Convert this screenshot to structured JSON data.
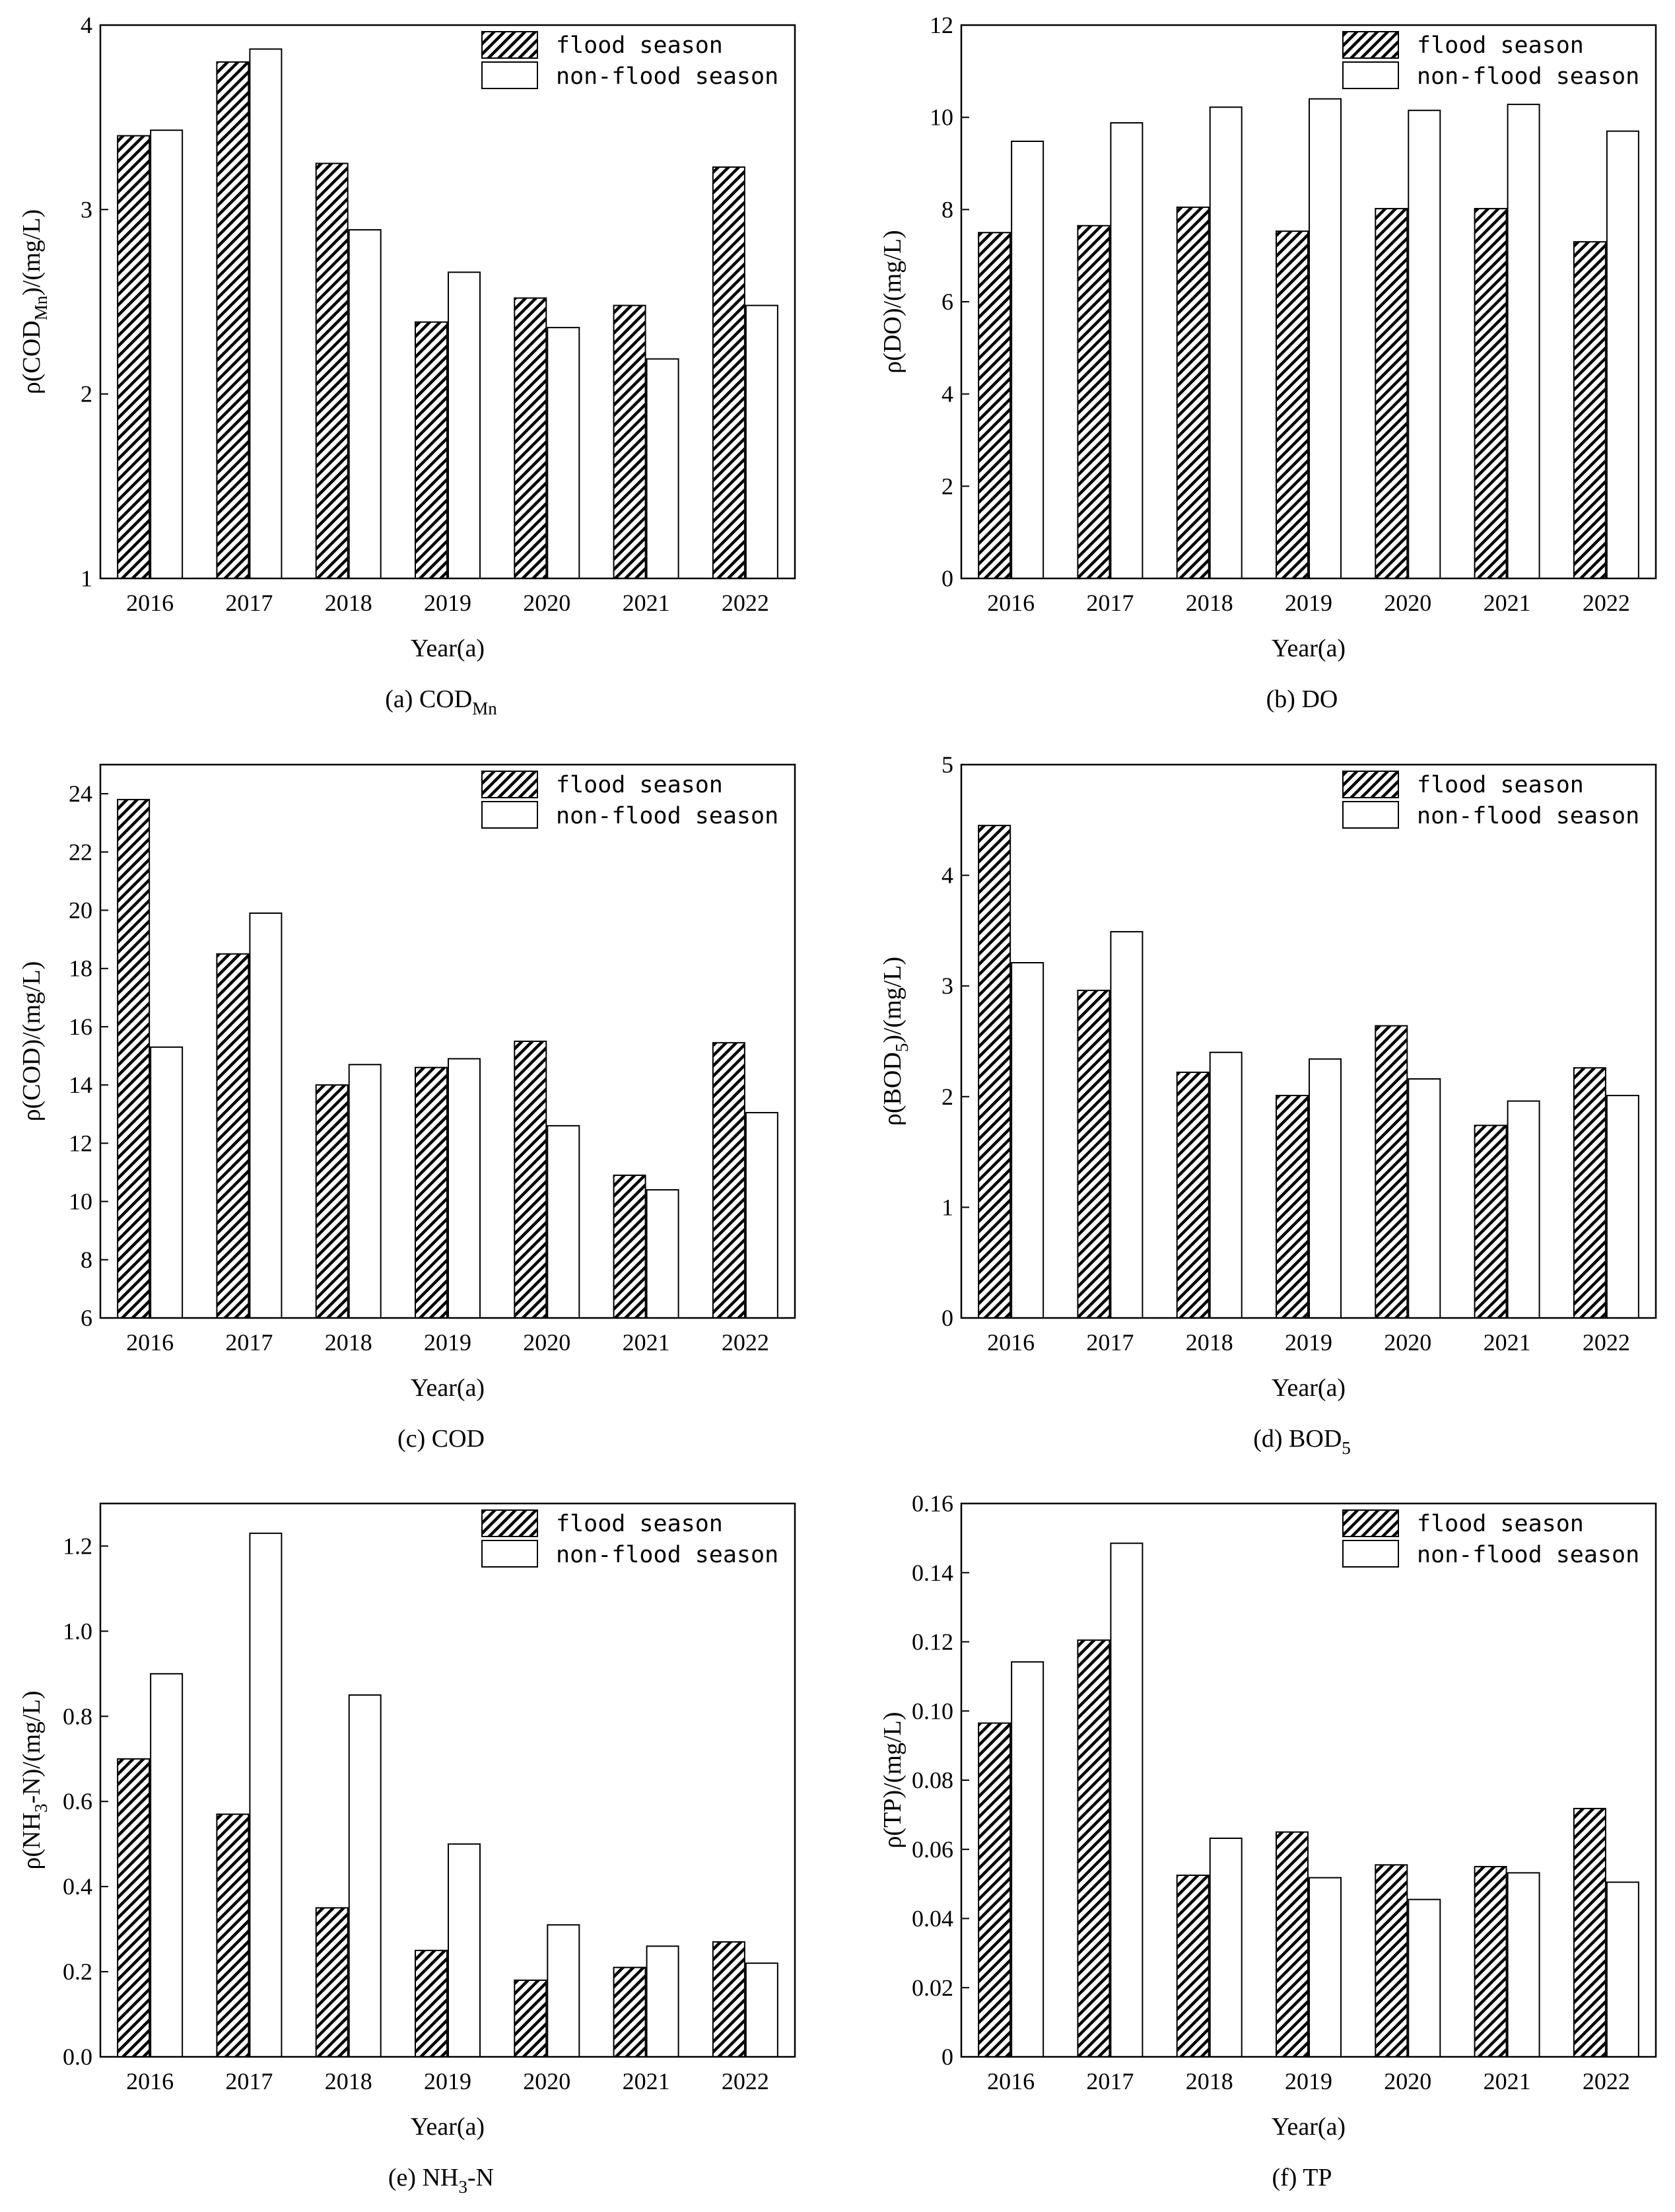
{
  "legend": {
    "flood_label": "flood season",
    "nonflood_label": "non-flood season"
  },
  "chart_data": [
    {
      "type": "bar",
      "caption": "(a) COD",
      "caption_sub": "Mn",
      "caption_after": "",
      "ylabel_pre": "ρ(COD",
      "ylabel_sub": "Mn",
      "ylabel_post": ")/(mg/L)",
      "xlabel": "Year(a)",
      "categories": [
        "2016",
        "2017",
        "2018",
        "2019",
        "2020",
        "2021",
        "2022"
      ],
      "ylim": [
        1,
        4
      ],
      "yticks": [
        "1",
        "2",
        "3",
        "4"
      ],
      "series": [
        {
          "name": "flood season",
          "values": [
            3.4,
            3.8,
            3.25,
            2.39,
            2.52,
            2.48,
            3.23
          ]
        },
        {
          "name": "non-flood season",
          "values": [
            3.43,
            3.87,
            2.89,
            2.66,
            2.36,
            2.19,
            2.48
          ]
        }
      ],
      "legend_position": "top-right",
      "grid": false
    },
    {
      "type": "bar",
      "caption": "(b) DO",
      "caption_sub": "",
      "caption_after": "",
      "ylabel_pre": "ρ(DO)/(mg/L)",
      "ylabel_sub": "",
      "ylabel_post": "",
      "xlabel": "Year(a)",
      "categories": [
        "2016",
        "2017",
        "2018",
        "2019",
        "2020",
        "2021",
        "2022"
      ],
      "ylim": [
        0,
        12
      ],
      "yticks": [
        "0",
        "2",
        "4",
        "6",
        "8",
        "10",
        "12"
      ],
      "series": [
        {
          "name": "flood season",
          "values": [
            7.5,
            7.65,
            8.05,
            7.53,
            8.02,
            8.02,
            7.3
          ]
        },
        {
          "name": "non-flood season",
          "values": [
            9.48,
            9.88,
            10.22,
            10.4,
            10.15,
            10.28,
            9.7
          ]
        }
      ],
      "legend_position": "top-right",
      "grid": false
    },
    {
      "type": "bar",
      "caption": "(c) COD",
      "caption_sub": "",
      "caption_after": "",
      "ylabel_pre": "ρ(COD)/(mg/L)",
      "ylabel_sub": "",
      "ylabel_post": "",
      "xlabel": "Year(a)",
      "categories": [
        "2016",
        "2017",
        "2018",
        "2019",
        "2020",
        "2021",
        "2022"
      ],
      "ylim": [
        6,
        25
      ],
      "yticks": [
        "6",
        "8",
        "10",
        "12",
        "14",
        "16",
        "18",
        "20",
        "22",
        "24"
      ],
      "series": [
        {
          "name": "flood season",
          "values": [
            23.8,
            18.5,
            14.0,
            14.6,
            15.5,
            10.9,
            15.45
          ]
        },
        {
          "name": "non-flood season",
          "values": [
            15.3,
            19.9,
            14.7,
            14.9,
            12.6,
            10.4,
            13.05
          ]
        }
      ],
      "legend_position": "top-right",
      "grid": false
    },
    {
      "type": "bar",
      "caption": "(d) BOD",
      "caption_sub": "5",
      "caption_after": "",
      "ylabel_pre": "ρ(BOD",
      "ylabel_sub": "5",
      "ylabel_post": ")/(mg/L)",
      "xlabel": "Year(a)",
      "categories": [
        "2016",
        "2017",
        "2018",
        "2019",
        "2020",
        "2021",
        "2022"
      ],
      "ylim": [
        0,
        5
      ],
      "yticks": [
        "0",
        "1",
        "2",
        "3",
        "4",
        "5"
      ],
      "series": [
        {
          "name": "flood season",
          "values": [
            4.45,
            2.96,
            2.22,
            2.01,
            2.64,
            1.74,
            2.26
          ]
        },
        {
          "name": "non-flood season",
          "values": [
            3.21,
            3.49,
            2.4,
            2.34,
            2.16,
            1.96,
            2.01
          ]
        }
      ],
      "legend_position": "top-right",
      "grid": false
    },
    {
      "type": "bar",
      "caption": "(e) NH",
      "caption_sub": "3",
      "caption_after": "-N",
      "ylabel_pre": "ρ(NH",
      "ylabel_sub": "3",
      "ylabel_post": "-N)/(mg/L)",
      "xlabel": "Year(a)",
      "categories": [
        "2016",
        "2017",
        "2018",
        "2019",
        "2020",
        "2021",
        "2022"
      ],
      "ylim": [
        0,
        1.3
      ],
      "yticks": [
        "0.0",
        "0.2",
        "0.4",
        "0.6",
        "0.8",
        "1.0",
        "1.2"
      ],
      "series": [
        {
          "name": "flood season",
          "values": [
            0.7,
            0.57,
            0.35,
            0.25,
            0.18,
            0.21,
            0.27
          ]
        },
        {
          "name": "non-flood season",
          "values": [
            0.9,
            1.23,
            0.85,
            0.5,
            0.31,
            0.26,
            0.22
          ]
        }
      ],
      "legend_position": "top-right",
      "grid": false
    },
    {
      "type": "bar",
      "caption": "(f) TP",
      "caption_sub": "",
      "caption_after": "",
      "ylabel_pre": "ρ(TP)/(mg/L)",
      "ylabel_sub": "",
      "ylabel_post": "",
      "xlabel": "Year(a)",
      "categories": [
        "2016",
        "2017",
        "2018",
        "2019",
        "2020",
        "2021",
        "2022"
      ],
      "ylim": [
        0,
        0.16
      ],
      "yticks": [
        "0",
        "0.02",
        "0.04",
        "0.06",
        "0.08",
        "0.10",
        "0.12",
        "0.14",
        "0.16"
      ],
      "series": [
        {
          "name": "flood season",
          "values": [
            0.0965,
            0.1205,
            0.0525,
            0.065,
            0.0555,
            0.055,
            0.0718
          ]
        },
        {
          "name": "non-flood season",
          "values": [
            0.1142,
            0.1485,
            0.0632,
            0.0518,
            0.0455,
            0.0532,
            0.0505
          ]
        }
      ],
      "legend_position": "top-right",
      "grid": false
    }
  ]
}
